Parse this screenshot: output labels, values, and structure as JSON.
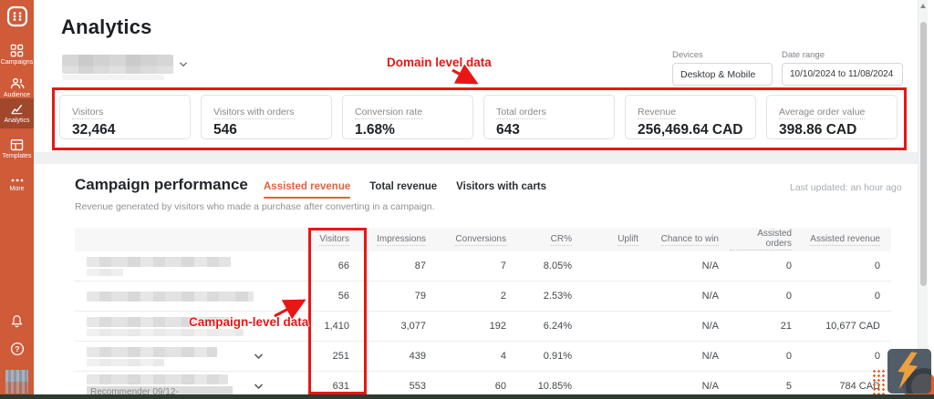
{
  "sidebar": {
    "items": [
      {
        "label": "Campaigns"
      },
      {
        "label": "Audience"
      },
      {
        "label": "Analytics",
        "active": true
      },
      {
        "label": "Templates"
      },
      {
        "label": "More"
      }
    ]
  },
  "header": {
    "title": "Analytics",
    "devices": {
      "label": "Devices",
      "value": "Desktop & Mobile"
    },
    "date_range": {
      "label": "Date range",
      "value": "10/10/2024 to 11/08/2024"
    }
  },
  "metrics": [
    {
      "label": "Visitors",
      "value": "32,464"
    },
    {
      "label": "Visitors with orders",
      "value": "546"
    },
    {
      "label": "Conversion rate",
      "value": "1.68%"
    },
    {
      "label": "Total orders",
      "value": "643"
    },
    {
      "label": "Revenue",
      "value": "256,469.64 CAD"
    },
    {
      "label": "Average order value",
      "value": "398.86 CAD"
    }
  ],
  "annotations": {
    "domain": "Domain level data",
    "campaign": "Campaign-level data",
    "color": "#e91616"
  },
  "panel": {
    "title": "Campaign performance",
    "tabs": [
      "Assisted revenue",
      "Total revenue",
      "Visitors with carts"
    ],
    "active_tab": "Assisted revenue",
    "last_updated": "Last updated: an hour ago",
    "subtitle": "Revenue generated by visitors who made a purchase after converting in a campaign.",
    "table": {
      "columns": [
        "Visitors",
        "Impressions",
        "Conversions",
        "CR%",
        "Uplift",
        "Chance to win",
        "Assisted orders",
        "Assisted revenue"
      ],
      "rows": [
        {
          "name": "",
          "expandable": false,
          "values": [
            "66",
            "87",
            "7",
            "8.05%",
            "",
            "N/A",
            "0",
            "0"
          ]
        },
        {
          "name": "",
          "expandable": false,
          "values": [
            "56",
            "79",
            "2",
            "2.53%",
            "",
            "N/A",
            "0",
            "0"
          ]
        },
        {
          "name": "",
          "expandable": false,
          "values": [
            "1,410",
            "3,077",
            "192",
            "6.24%",
            "",
            "N/A",
            "21",
            "10,677 CAD"
          ]
        },
        {
          "name": "",
          "expandable": true,
          "values": [
            "251",
            "439",
            "4",
            "0.91%",
            "",
            "N/A",
            "0",
            "0"
          ]
        },
        {
          "name": "Recommender 09/12-",
          "expandable": true,
          "values": [
            "631",
            "553",
            "60",
            "10.85%",
            "",
            "N/A",
            "5",
            "784 CAD"
          ]
        }
      ]
    }
  },
  "colors": {
    "sidebar_orange": "#cf5b39",
    "accent_orange": "#e4613c",
    "annotation_red": "#e91616"
  }
}
